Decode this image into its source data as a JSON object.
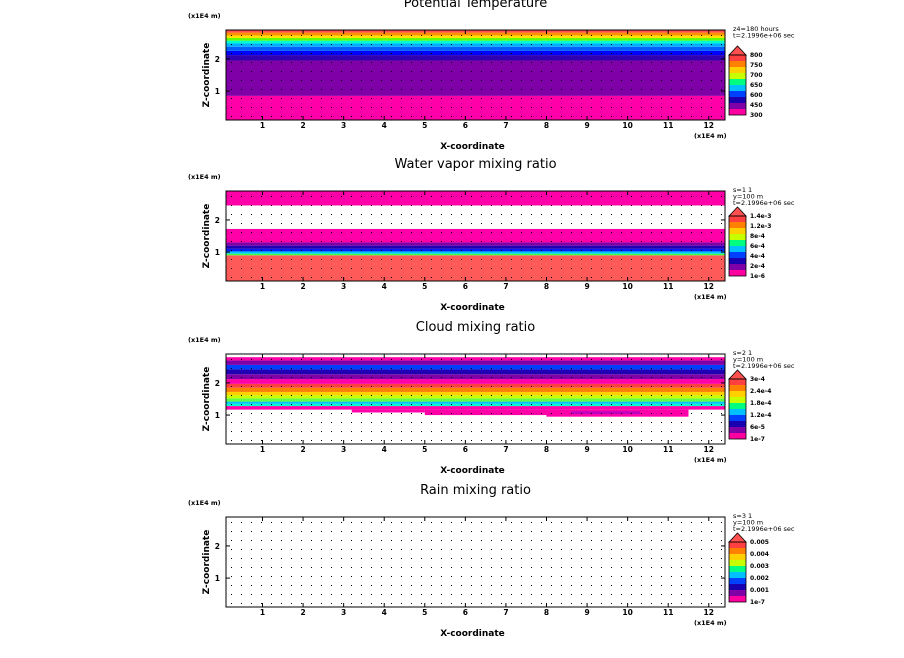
{
  "figure": {
    "background": "#ffffff",
    "axis_color": "#000000"
  },
  "chart_data": [
    {
      "type": "heatmap",
      "title": "Potential Temperature",
      "xlabel": "X-coordinate",
      "ylabel": "Z-coordinate",
      "x_scale_label": "(x1E4 m)",
      "z_scale_label": "(x1E4 m)",
      "xlim": [
        0.1,
        12.4
      ],
      "zlim": [
        0.1,
        2.9
      ],
      "x_ticks": [
        "1",
        "2",
        "3",
        "4",
        "5",
        "6",
        "7",
        "8",
        "9",
        "10",
        "11",
        "12"
      ],
      "z_ticks": [
        "1",
        "2"
      ],
      "info_lines": [
        "z4=180 hours",
        "t=2.1996e+06 sec"
      ],
      "legend_labels": [
        "300",
        "450",
        "600",
        "650",
        "700",
        "750",
        "800"
      ],
      "legend_colors": [
        "#ff00a0",
        "#8000a8",
        "#1800b0",
        "#0040ff",
        "#00c0ff",
        "#00ff80",
        "#c8ff00",
        "#ffd000",
        "#ff8000",
        "#ff4040"
      ],
      "bands": [
        {
          "z0": 0.1,
          "z1": 0.85,
          "color": "#ff00a8"
        },
        {
          "z0": 0.85,
          "z1": 1.95,
          "color": "#8000a8"
        },
        {
          "z0": 1.95,
          "z1": 2.12,
          "color": "#3000b0"
        },
        {
          "z0": 2.12,
          "z1": 2.25,
          "color": "#0000ff"
        },
        {
          "z0": 2.25,
          "z1": 2.38,
          "color": "#0060ff"
        },
        {
          "z0": 2.38,
          "z1": 2.48,
          "color": "#00b0ff"
        },
        {
          "z0": 2.48,
          "z1": 2.57,
          "color": "#00ffd0"
        },
        {
          "z0": 2.57,
          "z1": 2.65,
          "color": "#60ff00"
        },
        {
          "z0": 2.65,
          "z1": 2.73,
          "color": "#ffe000"
        },
        {
          "z0": 2.73,
          "z1": 2.82,
          "color": "#ff9000"
        },
        {
          "z0": 2.82,
          "z1": 2.9,
          "color": "#ff5050"
        }
      ]
    },
    {
      "type": "heatmap",
      "title": "Water vapor mixing ratio",
      "xlabel": "X-coordinate",
      "ylabel": "Z-coordinate",
      "x_scale_label": "(x1E4 m)",
      "z_scale_label": "(x1E4 m)",
      "xlim": [
        0.1,
        12.4
      ],
      "zlim": [
        0.1,
        2.9
      ],
      "x_ticks": [
        "1",
        "2",
        "3",
        "4",
        "5",
        "6",
        "7",
        "8",
        "9",
        "10",
        "11",
        "12"
      ],
      "z_ticks": [
        "1",
        "2"
      ],
      "info_lines": [
        "s=1 1",
        "y=100 m",
        "t=2.1996e+06 sec"
      ],
      "legend_labels": [
        "1e-6",
        "2e-4",
        "4e-4",
        "6e-4",
        "8e-4",
        "1.2e-3",
        "1.4e-3"
      ],
      "legend_colors": [
        "#ff00a0",
        "#8000a8",
        "#1800b0",
        "#0040ff",
        "#00c0ff",
        "#00ff80",
        "#c8ff00",
        "#ffd000",
        "#ff8000",
        "#ff4040"
      ],
      "bands": [
        {
          "z0": 0.1,
          "z1": 0.9,
          "color": "#ff5a5a"
        },
        {
          "z0": 0.9,
          "z1": 0.95,
          "color": "#40ff40"
        },
        {
          "z0": 0.95,
          "z1": 1.02,
          "color": "#00c8ff"
        },
        {
          "z0": 1.02,
          "z1": 1.1,
          "color": "#0020ff"
        },
        {
          "z0": 1.1,
          "z1": 1.2,
          "color": "#2000b0"
        },
        {
          "z0": 1.2,
          "z1": 1.3,
          "color": "#8000a8"
        },
        {
          "z0": 1.3,
          "z1": 1.72,
          "color": "#ff00a8"
        },
        {
          "z0": 2.45,
          "z1": 2.9,
          "color": "#ff00a8"
        }
      ]
    },
    {
      "type": "heatmap",
      "title": "Cloud mixing ratio",
      "xlabel": "X-coordinate",
      "ylabel": "Z-coordinate",
      "x_scale_label": "(x1E4 m)",
      "z_scale_label": "(x1E4 m)",
      "xlim": [
        0.1,
        12.4
      ],
      "zlim": [
        0.1,
        2.9
      ],
      "x_ticks": [
        "1",
        "2",
        "3",
        "4",
        "5",
        "6",
        "7",
        "8",
        "9",
        "10",
        "11",
        "12"
      ],
      "z_ticks": [
        "1",
        "2"
      ],
      "info_lines": [
        "s=2 1",
        "y=100 m",
        "t=2.1996e+06 sec"
      ],
      "legend_labels": [
        "1e-7",
        "6e-5",
        "1.2e-4",
        "1.8e-4",
        "2.4e-4",
        "3e-4"
      ],
      "legend_colors": [
        "#ff00a0",
        "#8000a8",
        "#1800b0",
        "#0040ff",
        "#00c0ff",
        "#00ff80",
        "#c8ff00",
        "#ffd000",
        "#ff8000",
        "#ff4040"
      ],
      "bands": [
        {
          "z0": 1.17,
          "z1": 1.28,
          "color": "#ff00a8"
        },
        {
          "z0": 1.28,
          "z1": 1.35,
          "color": "#00ffd0"
        },
        {
          "z0": 1.35,
          "z1": 1.42,
          "color": "#00c0ff"
        },
        {
          "z0": 1.42,
          "z1": 1.52,
          "color": "#60ff40"
        },
        {
          "z0": 1.52,
          "z1": 1.62,
          "color": "#c8ff00"
        },
        {
          "z0": 1.62,
          "z1": 1.72,
          "color": "#ffd000"
        },
        {
          "z0": 1.72,
          "z1": 1.85,
          "color": "#ff8000"
        },
        {
          "z0": 1.85,
          "z1": 1.97,
          "color": "#ff4040"
        },
        {
          "z0": 1.97,
          "z1": 2.12,
          "color": "#ff00a8"
        },
        {
          "z0": 2.12,
          "z1": 2.27,
          "color": "#8000a8"
        },
        {
          "z0": 2.27,
          "z1": 2.42,
          "color": "#2000b0"
        },
        {
          "z0": 2.42,
          "z1": 2.56,
          "color": "#0040ff"
        },
        {
          "z0": 2.56,
          "z1": 2.7,
          "color": "#8000a8"
        },
        {
          "z0": 2.7,
          "z1": 2.8,
          "color": "#ff00a8"
        }
      ],
      "bumps": [
        {
          "x0": 3.2,
          "x1": 5.0,
          "z0": 1.08,
          "z1": 1.17,
          "color": "#ff00a8"
        },
        {
          "x0": 5.0,
          "x1": 8.0,
          "z0": 1.0,
          "z1": 1.17,
          "color": "#ff00a8"
        },
        {
          "x0": 8.0,
          "x1": 11.5,
          "z0": 0.95,
          "z1": 1.17,
          "color": "#ff00a8"
        },
        {
          "x0": 8.6,
          "x1": 10.3,
          "z0": 1.03,
          "z1": 1.12,
          "color": "#c000c0"
        }
      ]
    },
    {
      "type": "heatmap",
      "title": "Rain mixing ratio",
      "xlabel": "X-coordinate",
      "ylabel": "Z-coordinate",
      "x_scale_label": "(x1E4 m)",
      "z_scale_label": "(x1E4 m)",
      "xlim": [
        0.1,
        12.4
      ],
      "zlim": [
        0.1,
        2.9
      ],
      "x_ticks": [
        "1",
        "2",
        "3",
        "4",
        "5",
        "6",
        "7",
        "8",
        "9",
        "10",
        "11",
        "12"
      ],
      "z_ticks": [
        "1",
        "2"
      ],
      "info_lines": [
        "s=3 1",
        "y=100 m",
        "t=2.1996e+06 sec"
      ],
      "legend_labels": [
        "1e-7",
        "0.001",
        "0.002",
        "0.003",
        "0.004",
        "0.005"
      ],
      "legend_colors": [
        "#ff00a0",
        "#8000a8",
        "#1800b0",
        "#0040ff",
        "#00c0ff",
        "#00ff80",
        "#c8ff00",
        "#ffd000",
        "#ff8000",
        "#ff4040"
      ],
      "bands": []
    }
  ]
}
